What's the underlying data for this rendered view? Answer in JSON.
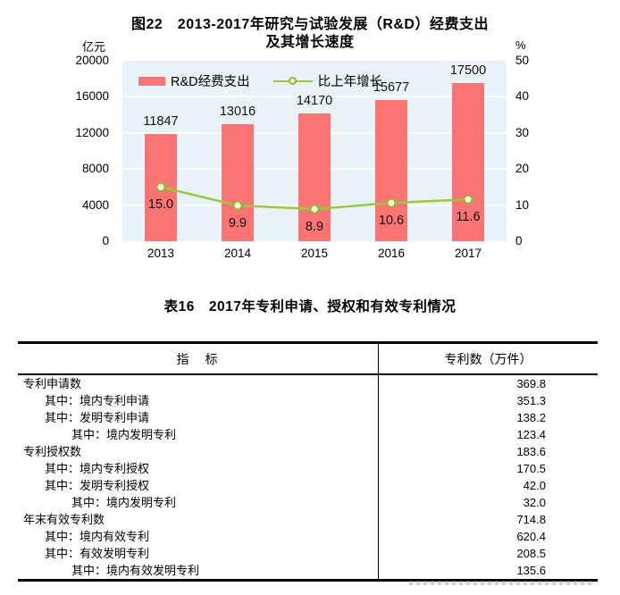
{
  "figure": {
    "title_line1": "图22　2013-2017年研究与试验发展（R&D）经费支出",
    "title_line2": "及其增长速度",
    "left_axis_unit": "亿元",
    "right_axis_unit": "%",
    "legend": [
      {
        "label": "R&D经费支出",
        "type": "bar",
        "color": "#fa7474"
      },
      {
        "label": "比上年增长",
        "type": "line",
        "color": "#9ac83c"
      }
    ]
  },
  "chart_data": {
    "type": "bar",
    "title": "图22 2013-2017年研究与试验发展（R&D）经费支出及其增长速度",
    "categories": [
      "2013",
      "2014",
      "2015",
      "2016",
      "2017"
    ],
    "series": [
      {
        "name": "R&D经费支出",
        "type": "bar",
        "axis": "left",
        "values": [
          11847,
          13016,
          14170,
          15677,
          17500
        ],
        "labels": [
          "11847",
          "13016",
          "14170",
          "15677",
          "17500"
        ],
        "color": "#fa7474"
      },
      {
        "name": "比上年增长",
        "type": "line",
        "axis": "right",
        "values": [
          15.0,
          9.9,
          8.9,
          10.6,
          11.6
        ],
        "labels": [
          "15.0",
          "9.9",
          "8.9",
          "10.6",
          "11.6"
        ],
        "color": "#9ac83c",
        "marker_fill": "#fdfbe8",
        "marker_stroke": "#8cba2f"
      }
    ],
    "left_axis": {
      "label": "亿元",
      "min": 0,
      "max": 20000,
      "ticks": [
        "20000",
        "16000",
        "12000",
        "8000",
        "4000",
        "0"
      ]
    },
    "right_axis": {
      "label": "%",
      "min": 0,
      "max": 50,
      "ticks": [
        "50",
        "40",
        "30",
        "20",
        "10",
        "0"
      ]
    },
    "plot_bg": "#e9f2f7",
    "grid_color": "#ffffff",
    "grid": true,
    "legend_position": "top-left"
  },
  "table": {
    "title": "表16　2017年专利申请、授权和有效专利情况",
    "columns": {
      "indicator": "指　标",
      "value": "专利数（万件）"
    },
    "rows": [
      {
        "label": "专利申请数",
        "indent": 0,
        "value": "369.8"
      },
      {
        "label": "其中：境内专利申请",
        "indent": 1,
        "value": "351.3"
      },
      {
        "label": "其中：发明专利申请",
        "indent": 1,
        "value": "138.2"
      },
      {
        "label": "其中：境内发明专利",
        "indent": 2,
        "value": "123.4"
      },
      {
        "label": "专利授权数",
        "indent": 0,
        "value": "183.6"
      },
      {
        "label": "其中：境内专利授权",
        "indent": 1,
        "value": "170.5"
      },
      {
        "label": "其中：发明专利授权",
        "indent": 1,
        "value": "42.0"
      },
      {
        "label": "其中：境内发明专利",
        "indent": 2,
        "value": "32.0"
      },
      {
        "label": "年末有效专利数",
        "indent": 0,
        "value": "714.8"
      },
      {
        "label": "其中：境内有效专利",
        "indent": 1,
        "value": "620.4"
      },
      {
        "label": "其中：有效发明专利",
        "indent": 1,
        "value": "208.5"
      },
      {
        "label": "其中：境内有效发明专利",
        "indent": 2,
        "value": "135.6"
      }
    ]
  }
}
